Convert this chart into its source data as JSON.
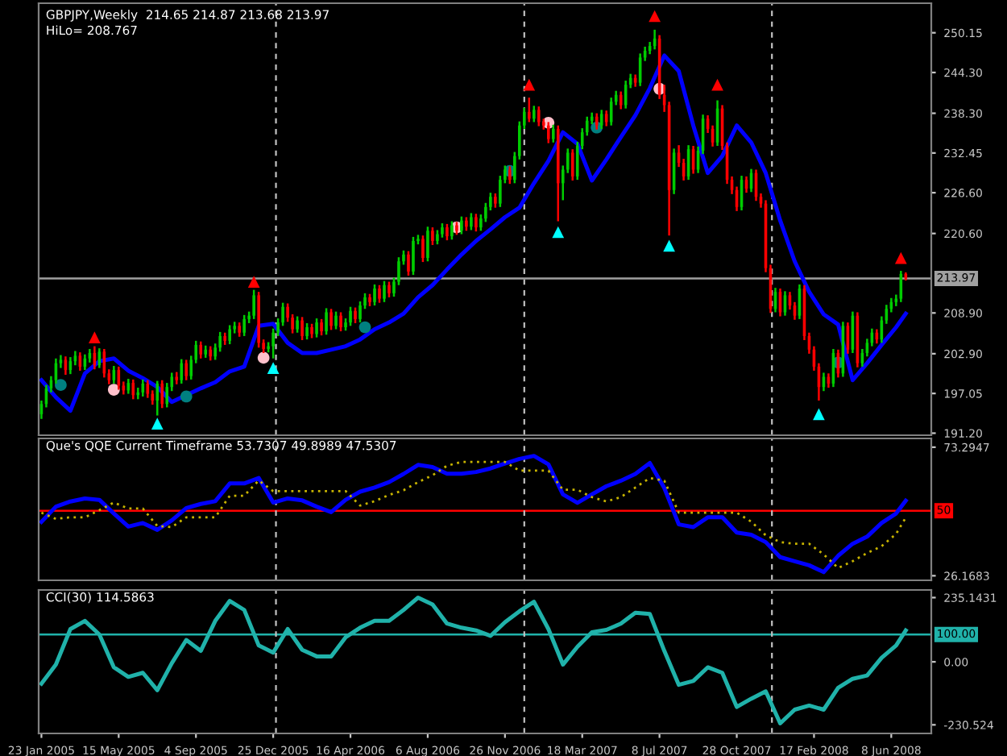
{
  "chart_data": [
    {
      "type": "candlestick",
      "title": "GBPJPY,Weekly  214.65 214.87 213.68 213.97",
      "subtitle": "HiLo= 208.767",
      "x": [
        "2005-01-23",
        "2005-01-30",
        "2005-02-06",
        "2005-02-13",
        "2005-02-20",
        "2005-02-27",
        "2005-03-06",
        "2005-03-13",
        "2005-03-20",
        "2005-03-27",
        "2005-04-03",
        "2005-04-10",
        "2005-04-17",
        "2005-04-24",
        "2005-05-01",
        "2005-05-08",
        "2005-05-15",
        "2005-05-22",
        "2005-05-29",
        "2005-06-05",
        "2005-06-12",
        "2005-06-19",
        "2005-06-26",
        "2005-07-03",
        "2005-07-10",
        "2005-07-17",
        "2005-07-24",
        "2005-07-31",
        "2005-08-07",
        "2005-08-14",
        "2005-08-21",
        "2005-08-28",
        "2005-09-04",
        "2005-09-11",
        "2005-09-18",
        "2005-09-25",
        "2005-10-02",
        "2005-10-09",
        "2005-10-16",
        "2005-10-23",
        "2005-10-30",
        "2005-11-06",
        "2005-11-13",
        "2005-11-20",
        "2005-11-27",
        "2005-12-04",
        "2005-12-11",
        "2005-12-18",
        "2005-12-25",
        "2006-01-01",
        "2006-01-08",
        "2006-01-15",
        "2006-01-22",
        "2006-01-29",
        "2006-02-05",
        "2006-02-12",
        "2006-02-19",
        "2006-02-26",
        "2006-03-05",
        "2006-03-12",
        "2006-03-19",
        "2006-03-26",
        "2006-04-02",
        "2006-04-09",
        "2006-04-16",
        "2006-04-23",
        "2006-04-30",
        "2006-05-07",
        "2006-05-14",
        "2006-05-21",
        "2006-05-28",
        "2006-06-04",
        "2006-06-11",
        "2006-06-18",
        "2006-06-25",
        "2006-07-02",
        "2006-07-09",
        "2006-07-16",
        "2006-07-23",
        "2006-07-30",
        "2006-08-06",
        "2006-08-13",
        "2006-08-20",
        "2006-08-27",
        "2006-09-03",
        "2006-09-10",
        "2006-09-17",
        "2006-09-24",
        "2006-10-01",
        "2006-10-08",
        "2006-10-15",
        "2006-10-22",
        "2006-10-29",
        "2006-11-05",
        "2006-11-12",
        "2006-11-19",
        "2006-11-26",
        "2006-12-03",
        "2006-12-10",
        "2006-12-17",
        "2006-12-24",
        "2006-12-31",
        "2007-01-07",
        "2007-01-14",
        "2007-01-21",
        "2007-01-28",
        "2007-02-04",
        "2007-02-11",
        "2007-02-18",
        "2007-02-25",
        "2007-03-04",
        "2007-03-11",
        "2007-03-18",
        "2007-03-25",
        "2007-04-01",
        "2007-04-08",
        "2007-04-15",
        "2007-04-22",
        "2007-04-29",
        "2007-05-06",
        "2007-05-13",
        "2007-05-20",
        "2007-05-27",
        "2007-06-03",
        "2007-06-10",
        "2007-06-17",
        "2007-06-24",
        "2007-07-01",
        "2007-07-08",
        "2007-07-15",
        "2007-07-22",
        "2007-07-29",
        "2007-08-05",
        "2007-08-12",
        "2007-08-19",
        "2007-08-26",
        "2007-09-02",
        "2007-09-09",
        "2007-09-16",
        "2007-09-23",
        "2007-09-30",
        "2007-10-07",
        "2007-10-14",
        "2007-10-21",
        "2007-10-28",
        "2007-11-04",
        "2007-11-11",
        "2007-11-18",
        "2007-11-25",
        "2007-12-02",
        "2007-12-09",
        "2007-12-16",
        "2007-12-23",
        "2007-12-30",
        "2008-01-06",
        "2008-01-13",
        "2008-01-20",
        "2008-01-27",
        "2008-02-03",
        "2008-02-10",
        "2008-02-17",
        "2008-02-24",
        "2008-03-02",
        "2008-03-09",
        "2008-03-16",
        "2008-03-23",
        "2008-03-30",
        "2008-04-06",
        "2008-04-13",
        "2008-04-20",
        "2008-04-27",
        "2008-05-04",
        "2008-05-11",
        "2008-05-18",
        "2008-05-25",
        "2008-06-01",
        "2008-06-08",
        "2008-06-15",
        "2008-06-22",
        "2008-06-29"
      ],
      "ohlc": [
        [
          194.0,
          196.0,
          193.3,
          195.5
        ],
        [
          195.5,
          198.3,
          195.0,
          197.8
        ],
        [
          197.8,
          199.6,
          197.2,
          199.0
        ],
        [
          199.0,
          202.2,
          198.5,
          201.5
        ],
        [
          201.5,
          202.7,
          200.8,
          202.0
        ],
        [
          202.0,
          202.5,
          199.8,
          200.5
        ],
        [
          200.5,
          202.4,
          199.9,
          201.8
        ],
        [
          201.8,
          203.3,
          201.2,
          202.6
        ],
        [
          202.6,
          203.1,
          200.4,
          201.0
        ],
        [
          201.0,
          202.8,
          200.5,
          202.2
        ],
        [
          202.2,
          203.6,
          201.6,
          203.0
        ],
        [
          203.0,
          204.0,
          200.6,
          201.2
        ],
        [
          201.2,
          203.7,
          200.8,
          203.2
        ],
        [
          203.2,
          203.6,
          199.4,
          200.0
        ],
        [
          200.0,
          200.6,
          198.4,
          199.0
        ],
        [
          199.0,
          201.1,
          198.5,
          200.5
        ],
        [
          200.5,
          201.0,
          197.6,
          198.2
        ],
        [
          198.2,
          198.8,
          196.9,
          197.5
        ],
        [
          197.5,
          199.2,
          197.0,
          198.6
        ],
        [
          198.6,
          199.1,
          196.2,
          196.8
        ],
        [
          196.8,
          197.9,
          196.2,
          197.2
        ],
        [
          197.2,
          199.1,
          196.6,
          198.5
        ],
        [
          198.5,
          199.0,
          196.4,
          197.0
        ],
        [
          197.0,
          197.5,
          195.4,
          196.0
        ],
        [
          196.0,
          198.9,
          193.8,
          198.5
        ],
        [
          198.5,
          199.0,
          194.9,
          195.5
        ],
        [
          195.5,
          198.6,
          195.0,
          198.0
        ],
        [
          198.0,
          200.1,
          197.4,
          199.5
        ],
        [
          199.5,
          200.2,
          198.4,
          199.0
        ],
        [
          199.0,
          202.1,
          198.5,
          201.5
        ],
        [
          201.5,
          202.0,
          199.0,
          199.6
        ],
        [
          199.6,
          202.6,
          199.1,
          202.0
        ],
        [
          202.0,
          204.8,
          201.5,
          204.2
        ],
        [
          204.2,
          204.7,
          202.2,
          202.8
        ],
        [
          202.8,
          204.1,
          202.3,
          203.5
        ],
        [
          203.5,
          204.0,
          201.9,
          202.5
        ],
        [
          202.5,
          204.4,
          202.0,
          203.8
        ],
        [
          203.8,
          206.1,
          203.2,
          205.5
        ],
        [
          205.5,
          206.0,
          204.2,
          204.8
        ],
        [
          204.8,
          207.1,
          204.3,
          206.5
        ],
        [
          206.5,
          207.6,
          205.9,
          207.0
        ],
        [
          207.0,
          207.5,
          205.4,
          206.0
        ],
        [
          206.0,
          208.6,
          205.5,
          208.0
        ],
        [
          208.0,
          209.1,
          207.4,
          208.5
        ],
        [
          208.5,
          212.3,
          208.0,
          211.5
        ],
        [
          211.5,
          212.0,
          203.8,
          204.5
        ],
        [
          204.5,
          205.0,
          203.0,
          203.6
        ],
        [
          203.6,
          204.6,
          203.1,
          204.0
        ],
        [
          204.0,
          206.6,
          202.2,
          206.0
        ],
        [
          206.0,
          208.1,
          205.5,
          207.5
        ],
        [
          207.5,
          210.4,
          207.0,
          209.8
        ],
        [
          209.8,
          210.3,
          207.6,
          208.2
        ],
        [
          208.2,
          208.7,
          205.9,
          206.5
        ],
        [
          206.5,
          208.4,
          206.0,
          207.8
        ],
        [
          207.8,
          208.3,
          204.9,
          205.5
        ],
        [
          205.5,
          207.4,
          205.0,
          206.8
        ],
        [
          206.8,
          207.3,
          205.2,
          205.8
        ],
        [
          205.8,
          208.1,
          205.3,
          207.5
        ],
        [
          207.5,
          208.0,
          205.6,
          206.2
        ],
        [
          206.2,
          209.6,
          205.7,
          209.0
        ],
        [
          209.0,
          209.5,
          206.4,
          207.0
        ],
        [
          207.0,
          209.1,
          206.5,
          208.5
        ],
        [
          208.5,
          209.0,
          206.2,
          206.8
        ],
        [
          206.8,
          208.1,
          206.3,
          207.5
        ],
        [
          207.5,
          209.8,
          207.0,
          209.2
        ],
        [
          209.2,
          209.7,
          207.4,
          208.0
        ],
        [
          208.0,
          210.6,
          207.5,
          210.0
        ],
        [
          210.0,
          211.8,
          209.5,
          211.2
        ],
        [
          211.2,
          211.7,
          209.9,
          210.5
        ],
        [
          210.5,
          213.1,
          210.0,
          212.5
        ],
        [
          212.5,
          213.0,
          210.4,
          211.0
        ],
        [
          211.0,
          213.6,
          210.5,
          213.0
        ],
        [
          213.0,
          213.5,
          211.2,
          211.8
        ],
        [
          211.8,
          214.1,
          211.3,
          213.5
        ],
        [
          213.5,
          217.1,
          213.0,
          216.5
        ],
        [
          216.5,
          218.1,
          216.0,
          217.5
        ],
        [
          217.5,
          218.0,
          214.4,
          215.0
        ],
        [
          215.0,
          220.1,
          214.5,
          219.5
        ],
        [
          219.5,
          220.4,
          219.0,
          219.8
        ],
        [
          219.8,
          220.3,
          216.4,
          217.0
        ],
        [
          217.0,
          221.6,
          216.5,
          221.0
        ],
        [
          221.0,
          221.5,
          218.9,
          219.5
        ],
        [
          219.5,
          221.1,
          219.0,
          220.5
        ],
        [
          220.5,
          222.1,
          220.0,
          221.5
        ],
        [
          221.5,
          222.0,
          219.6,
          220.2
        ],
        [
          220.2,
          222.4,
          219.7,
          221.8
        ],
        [
          221.8,
          222.3,
          220.4,
          221.0
        ],
        [
          221.0,
          223.1,
          220.5,
          222.5
        ],
        [
          222.5,
          223.0,
          221.0,
          221.6
        ],
        [
          221.6,
          223.6,
          221.1,
          223.0
        ],
        [
          223.0,
          223.5,
          220.9,
          221.5
        ],
        [
          221.5,
          223.4,
          221.0,
          222.8
        ],
        [
          222.8,
          225.1,
          222.3,
          224.5
        ],
        [
          224.5,
          226.6,
          224.0,
          226.0
        ],
        [
          226.0,
          226.5,
          224.4,
          225.0
        ],
        [
          225.0,
          229.1,
          224.5,
          228.5
        ],
        [
          228.5,
          230.6,
          228.0,
          230.0
        ],
        [
          230.0,
          230.5,
          227.9,
          228.5
        ],
        [
          228.5,
          232.6,
          228.0,
          232.0
        ],
        [
          232.0,
          237.1,
          231.5,
          236.5
        ],
        [
          236.5,
          239.1,
          236.0,
          238.5
        ],
        [
          238.5,
          240.6,
          237.0,
          237.5
        ],
        [
          237.5,
          239.4,
          237.0,
          238.8
        ],
        [
          238.8,
          239.3,
          236.4,
          237.0
        ],
        [
          237.0,
          237.5,
          235.9,
          236.5
        ],
        [
          236.5,
          237.0,
          233.9,
          234.5
        ],
        [
          234.5,
          236.6,
          234.0,
          236.0
        ],
        [
          236.0,
          236.5,
          222.4,
          228.0
        ],
        [
          228.0,
          230.6,
          225.5,
          230.0
        ],
        [
          230.0,
          233.1,
          229.5,
          232.5
        ],
        [
          232.5,
          233.0,
          228.4,
          229.0
        ],
        [
          229.0,
          234.1,
          228.5,
          233.5
        ],
        [
          233.5,
          236.1,
          233.0,
          235.5
        ],
        [
          235.5,
          237.8,
          235.0,
          237.2
        ],
        [
          237.2,
          238.4,
          236.7,
          237.8
        ],
        [
          237.8,
          238.3,
          235.9,
          236.5
        ],
        [
          236.5,
          238.8,
          236.0,
          238.2
        ],
        [
          238.2,
          238.7,
          236.4,
          237.0
        ],
        [
          237.0,
          240.6,
          236.5,
          240.0
        ],
        [
          240.0,
          241.6,
          239.5,
          241.0
        ],
        [
          241.0,
          241.5,
          238.9,
          239.5
        ],
        [
          239.5,
          243.1,
          239.0,
          242.5
        ],
        [
          242.5,
          244.1,
          242.0,
          243.5
        ],
        [
          243.5,
          244.0,
          242.2,
          242.8
        ],
        [
          242.8,
          247.1,
          242.3,
          246.5
        ],
        [
          246.5,
          248.1,
          246.0,
          247.5
        ],
        [
          247.5,
          248.8,
          247.0,
          248.2
        ],
        [
          248.2,
          250.6,
          247.7,
          249.3
        ],
        [
          249.3,
          249.8,
          240.4,
          241.0
        ],
        [
          241.0,
          242.5,
          238.5,
          239.5
        ],
        [
          239.5,
          240.0,
          220.3,
          227.0
        ],
        [
          227.0,
          233.1,
          226.4,
          232.5
        ],
        [
          232.5,
          233.6,
          230.4,
          231.0
        ],
        [
          231.0,
          231.6,
          228.4,
          229.0
        ],
        [
          229.0,
          233.6,
          228.5,
          233.0
        ],
        [
          233.0,
          233.5,
          229.4,
          230.0
        ],
        [
          230.0,
          233.4,
          229.5,
          232.8
        ],
        [
          232.8,
          238.1,
          232.3,
          237.5
        ],
        [
          237.5,
          238.0,
          235.4,
          236.0
        ],
        [
          236.0,
          236.5,
          233.4,
          234.0
        ],
        [
          234.0,
          240.2,
          233.5,
          239.0
        ],
        [
          239.0,
          239.5,
          232.9,
          233.5
        ],
        [
          233.5,
          234.0,
          227.9,
          228.5
        ],
        [
          228.5,
          229.0,
          226.4,
          227.0
        ],
        [
          227.0,
          227.5,
          223.9,
          224.5
        ],
        [
          224.5,
          229.1,
          224.0,
          228.5
        ],
        [
          228.5,
          229.0,
          226.6,
          227.2
        ],
        [
          227.2,
          230.1,
          226.7,
          229.5
        ],
        [
          229.5,
          230.0,
          225.4,
          226.0
        ],
        [
          226.0,
          226.5,
          224.4,
          225.0
        ],
        [
          225.0,
          225.5,
          214.9,
          215.5
        ],
        [
          215.5,
          216.0,
          208.9,
          209.5
        ],
        [
          209.5,
          212.6,
          209.0,
          212.0
        ],
        [
          212.0,
          212.5,
          208.4,
          209.0
        ],
        [
          209.0,
          212.1,
          208.5,
          211.5
        ],
        [
          211.5,
          212.0,
          209.4,
          210.0
        ],
        [
          210.0,
          210.5,
          207.9,
          208.5
        ],
        [
          208.5,
          213.1,
          208.0,
          212.5
        ],
        [
          212.5,
          213.0,
          204.9,
          205.5
        ],
        [
          205.5,
          206.0,
          202.9,
          203.5
        ],
        [
          203.5,
          204.0,
          200.4,
          201.0
        ],
        [
          201.0,
          201.5,
          196.0,
          198.0
        ],
        [
          198.0,
          200.1,
          197.4,
          199.5
        ],
        [
          199.5,
          200.0,
          197.9,
          198.5
        ],
        [
          198.5,
          203.6,
          198.0,
          203.0
        ],
        [
          203.0,
          203.5,
          199.4,
          200.0
        ],
        [
          200.0,
          207.6,
          199.5,
          207.0
        ],
        [
          207.0,
          207.5,
          202.9,
          203.5
        ],
        [
          203.5,
          209.1,
          203.0,
          208.5
        ],
        [
          208.5,
          209.0,
          200.9,
          201.5
        ],
        [
          201.5,
          203.6,
          201.0,
          203.0
        ],
        [
          203.0,
          205.1,
          202.5,
          204.5
        ],
        [
          204.5,
          206.6,
          204.0,
          206.0
        ],
        [
          206.0,
          206.5,
          204.4,
          205.0
        ],
        [
          205.0,
          208.4,
          204.5,
          207.8
        ],
        [
          207.8,
          210.1,
          207.3,
          209.5
        ],
        [
          209.5,
          211.1,
          209.0,
          210.5
        ],
        [
          210.5,
          211.6,
          209.9,
          211.0
        ],
        [
          211.0,
          215.1,
          210.5,
          214.65
        ],
        [
          214.65,
          214.87,
          213.68,
          213.97
        ]
      ],
      "colors": [
        "#00cc00",
        "#00cc00",
        "#00cc00",
        "#00cc00",
        "#00cc00",
        "#ff0000",
        "#00cc00",
        "#00cc00",
        "#ff0000",
        "#00cc00",
        "#00cc00",
        "#ff0000",
        "#00cc00",
        "#ff0000",
        "#ff0000",
        "#00cc00",
        "#ff0000",
        "#ff0000",
        "#00cc00",
        "#ff0000",
        "#00cc00",
        "#00cc00",
        "#ff0000",
        "#ff0000",
        "#00cc00",
        "#ff0000",
        "#00cc00",
        "#00cc00",
        "#ff0000",
        "#00cc00",
        "#ff0000",
        "#00cc00",
        "#00cc00",
        "#ff0000",
        "#00cc00",
        "#ff0000",
        "#00cc00",
        "#00cc00",
        "#ff0000",
        "#00cc00",
        "#00cc00",
        "#ff0000",
        "#00cc00",
        "#00cc00",
        "#00cc00",
        "#ff0000",
        "#ff0000",
        "#00cc00",
        "#00cc00",
        "#00cc00",
        "#00cc00",
        "#ff0000",
        "#ff0000",
        "#00cc00",
        "#ff0000",
        "#00cc00",
        "#ff0000",
        "#00cc00",
        "#ff0000",
        "#00cc00",
        "#ff0000",
        "#00cc00",
        "#ff0000",
        "#00cc00",
        "#00cc00",
        "#ff0000",
        "#00cc00",
        "#00cc00",
        "#ff0000",
        "#00cc00",
        "#ff0000",
        "#00cc00",
        "#ff0000",
        "#00cc00",
        "#00cc00",
        "#00cc00",
        "#ff0000",
        "#00cc00",
        "#00cc00",
        "#ff0000",
        "#00cc00",
        "#ff0000",
        "#00cc00",
        "#00cc00",
        "#ff0000",
        "#00cc00",
        "#ff0000",
        "#00cc00",
        "#ff0000",
        "#00cc00",
        "#ff0000",
        "#00cc00",
        "#00cc00",
        "#00cc00",
        "#ff0000",
        "#00cc00",
        "#00cc00",
        "#ff0000",
        "#00cc00",
        "#00cc00",
        "#00cc00",
        "#ff0000",
        "#00cc00",
        "#ff0000",
        "#ff0000",
        "#ff0000",
        "#00cc00",
        "#ff0000",
        "#00cc00",
        "#00cc00",
        "#ff0000",
        "#00cc00",
        "#00cc00",
        "#00cc00",
        "#00cc00",
        "#ff0000",
        "#00cc00",
        "#ff0000",
        "#00cc00",
        "#00cc00",
        "#ff0000",
        "#00cc00",
        "#00cc00",
        "#ff0000",
        "#00cc00",
        "#00cc00",
        "#00cc00",
        "#00cc00",
        "#ff0000",
        "#ff0000",
        "#ff0000",
        "#00cc00",
        "#ff0000",
        "#ff0000",
        "#00cc00",
        "#ff0000",
        "#00cc00",
        "#00cc00",
        "#ff0000",
        "#ff0000",
        "#00cc00",
        "#ff0000",
        "#ff0000",
        "#ff0000",
        "#ff0000",
        "#00cc00",
        "#ff0000",
        "#00cc00",
        "#ff0000",
        "#ff0000",
        "#ff0000",
        "#ff0000",
        "#00cc00",
        "#ff0000",
        "#00cc00",
        "#ff0000",
        "#ff0000",
        "#00cc00",
        "#ff0000",
        "#ff0000",
        "#ff0000",
        "#ff0000",
        "#00cc00",
        "#ff0000",
        "#00cc00",
        "#ff0000",
        "#00cc00",
        "#ff0000",
        "#00cc00",
        "#ff0000",
        "#00cc00",
        "#00cc00",
        "#00cc00",
        "#ff0000",
        "#00cc00",
        "#00cc00",
        "#00cc00",
        "#00cc00",
        "#00cc00",
        "#ff0000"
      ],
      "series": [
        {
          "type": "line",
          "color": "#0000ff",
          "x": [
            "2005-01-23",
            "2005-02-13",
            "2005-03-06",
            "2005-03-27",
            "2005-04-17",
            "2005-05-08",
            "2005-05-29",
            "2005-06-19",
            "2005-07-10",
            "2005-07-31",
            "2005-08-21",
            "2005-09-11",
            "2005-10-02",
            "2005-10-23",
            "2005-11-13",
            "2005-12-04",
            "2005-12-25",
            "2006-01-15",
            "2006-02-05",
            "2006-02-26",
            "2006-03-19",
            "2006-04-09",
            "2006-04-30",
            "2006-05-21",
            "2006-06-11",
            "2006-07-02",
            "2006-07-23",
            "2006-08-13",
            "2006-09-03",
            "2006-09-24",
            "2006-10-15",
            "2006-11-05",
            "2006-11-26",
            "2006-12-17",
            "2007-01-07",
            "2007-01-28",
            "2007-02-18",
            "2007-03-11",
            "2007-04-01",
            "2007-04-22",
            "2007-05-13",
            "2007-06-03",
            "2007-06-24",
            "2007-07-15",
            "2007-08-05",
            "2007-08-26",
            "2007-09-16",
            "2007-10-07",
            "2007-10-28",
            "2007-11-18",
            "2007-12-09",
            "2007-12-30",
            "2008-01-20",
            "2008-02-10",
            "2008-03-02",
            "2008-03-23",
            "2008-04-13",
            "2008-05-04",
            "2008-05-25",
            "2008-06-15",
            "2008-06-29"
          ],
          "values": [
            199.0,
            196.5,
            194.5,
            200.0,
            201.8,
            202.2,
            200.4,
            199.3,
            198.0,
            195.8,
            196.8,
            197.8,
            198.7,
            200.3,
            201.0,
            207.0,
            207.3,
            204.5,
            203.0,
            203.0,
            203.5,
            204.0,
            205.0,
            206.5,
            207.5,
            208.8,
            211.2,
            213.0,
            215.3,
            217.5,
            219.5,
            221.2,
            223.0,
            224.4,
            228.0,
            231.3,
            235.5,
            233.8,
            228.4,
            231.5,
            234.8,
            238.0,
            242.0,
            246.8,
            244.5,
            236.5,
            229.5,
            232.0,
            236.5,
            234.0,
            229.5,
            222.5,
            216.5,
            212.0,
            208.7,
            207.2,
            199.0,
            201.5,
            204.2,
            206.8,
            208.8
          ]
        },
        {
          "type": "scatter",
          "marker": "triangle",
          "color": "#ff0000",
          "x": [
            "2005-04-10",
            "2005-11-27",
            "2006-12-31",
            "2007-07-01",
            "2007-09-30",
            "2008-06-22"
          ],
          "values": [
            205.3,
            213.5,
            242.5,
            252.6,
            242.5,
            217.0
          ]
        },
        {
          "type": "scatter",
          "marker": "triangle",
          "color": "#00ffff",
          "x": [
            "2005-07-10",
            "2005-12-25",
            "2007-02-11",
            "2007-07-22",
            "2008-02-24"
          ],
          "values": [
            192.6,
            200.8,
            220.8,
            218.8,
            194.0
          ]
        },
        {
          "type": "scatter",
          "marker": "circle",
          "color": "#ffc0cb",
          "x": [
            "2005-05-08",
            "2005-12-11",
            "2006-09-17",
            "2007-01-28",
            "2007-07-08"
          ],
          "values": [
            197.6,
            202.3,
            221.5,
            236.9,
            241.9
          ]
        },
        {
          "type": "scatter",
          "marker": "circle",
          "color": "#008080",
          "x": [
            "2005-02-20",
            "2005-08-21",
            "2006-05-07",
            "2006-12-03",
            "2007-04-08",
            "2008-03-23"
          ],
          "values": [
            198.3,
            196.6,
            206.8,
            229.8,
            236.2,
            201.6
          ]
        }
      ],
      "xlim": [
        "2005-01-19",
        "2008-08-05"
      ],
      "ylim": [
        190.9,
        254.5
      ],
      "yticks": [
        250.15,
        {
          "value": 244.3,
          "label": "244.30"
        },
        {
          "value": 238.3,
          "label": "238.30"
        },
        232.45,
        {
          "value": 226.6,
          "label": "226.60"
        },
        {
          "value": 220.6,
          "label": "220.60"
        },
        {
          "value": 208.9,
          "label": "208.90"
        },
        {
          "value": 202.9,
          "label": "202.90"
        },
        197.05,
        {
          "value": 191.2,
          "label": "191.20"
        }
      ],
      "tick_labels": "y",
      "ref_lines": [
        {
          "axis": "y",
          "value": 213.97,
          "label": "213.97",
          "color": "#a0a0a0"
        },
        {
          "axis": "x",
          "value": "2005-12-29",
          "color": "#c0c0c0",
          "line_style": "dashed"
        },
        {
          "axis": "x",
          "value": "2006-12-24",
          "color": "#c0c0c0",
          "line_style": "dashed"
        },
        {
          "axis": "x",
          "value": "2007-12-18",
          "color": "#c0c0c0",
          "line_style": "dashed"
        }
      ]
    },
    {
      "type": "line",
      "title": "Que's QQE Current Timeframe 53.7307 49.8989 47.5307",
      "x": [
        "2005-01-23",
        "2005-02-13",
        "2005-03-06",
        "2005-03-27",
        "2005-04-17",
        "2005-05-08",
        "2005-05-29",
        "2005-06-19",
        "2005-07-10",
        "2005-07-31",
        "2005-08-21",
        "2005-09-11",
        "2005-10-02",
        "2005-10-23",
        "2005-11-13",
        "2005-12-04",
        "2005-12-25",
        "2006-01-15",
        "2006-02-05",
        "2006-02-26",
        "2006-03-19",
        "2006-04-09",
        "2006-04-30",
        "2006-05-21",
        "2006-06-11",
        "2006-07-02",
        "2006-07-23",
        "2006-08-13",
        "2006-09-03",
        "2006-09-24",
        "2006-10-15",
        "2006-11-05",
        "2006-11-26",
        "2006-12-17",
        "2007-01-07",
        "2007-01-28",
        "2007-02-18",
        "2007-03-11",
        "2007-04-01",
        "2007-04-22",
        "2007-05-13",
        "2007-06-03",
        "2007-06-24",
        "2007-07-15",
        "2007-08-05",
        "2007-08-26",
        "2007-09-16",
        "2007-10-07",
        "2007-10-28",
        "2007-11-18",
        "2007-12-09",
        "2007-12-30",
        "2008-01-20",
        "2008-02-10",
        "2008-03-02",
        "2008-03-23",
        "2008-04-13",
        "2008-05-04",
        "2008-05-25",
        "2008-06-15",
        "2008-06-29"
      ],
      "series": [
        {
          "color": "#0000ff",
          "values": [
            45.9,
            51.5,
            53.4,
            54.5,
            54.0,
            49.0,
            44.2,
            45.5,
            43.0,
            46.5,
            51.0,
            52.5,
            53.5,
            60.0,
            60.0,
            62.0,
            53.0,
            54.5,
            53.8,
            51.5,
            49.5,
            54.0,
            57.0,
            58.5,
            60.5,
            63.5,
            66.8,
            66.0,
            63.6,
            63.6,
            64.2,
            65.5,
            67.3,
            69.0,
            70.1,
            67.0,
            56.0,
            52.9,
            56.0,
            59.0,
            61.0,
            63.5,
            67.5,
            58.3,
            45.0,
            44.0,
            47.6,
            47.6,
            42.0,
            41.2,
            38.5,
            33.0,
            31.5,
            30.0,
            27.5,
            33.5,
            37.9,
            40.5,
            45.5,
            49.0,
            53.7
          ]
        },
        {
          "color": "#c8b400",
          "line_style": "dotted",
          "values": [
            49.3,
            47.0,
            47.6,
            47.6,
            50.2,
            53.0,
            50.8,
            50.8,
            44.4,
            44.0,
            47.6,
            47.6,
            47.6,
            55.5,
            55.5,
            61.1,
            57.2,
            57.2,
            57.2,
            57.2,
            57.2,
            57.2,
            51.9,
            53.5,
            55.8,
            57.5,
            60.5,
            63.0,
            66.5,
            67.9,
            67.9,
            67.9,
            67.9,
            64.7,
            64.7,
            64.7,
            57.7,
            57.7,
            55.0,
            53.4,
            55.0,
            58.5,
            62.0,
            61.0,
            49.3,
            49.3,
            49.3,
            49.3,
            49.3,
            46.0,
            41.0,
            38.5,
            37.9,
            37.9,
            34.0,
            29.0,
            31.5,
            34.5,
            37.0,
            41.5,
            47.5
          ]
        }
      ],
      "xlim": [
        "2005-01-19",
        "2008-08-05"
      ],
      "ylim": [
        24.5,
        76.5
      ],
      "yticks": [
        73.2947,
        26.1683
      ],
      "tick_labels": "y",
      "ref_lines": [
        {
          "axis": "y",
          "value": 50,
          "label": "50",
          "color": "#ff0000"
        },
        {
          "axis": "x",
          "value": "2005-12-29",
          "color": "#c0c0c0",
          "line_style": "dashed"
        },
        {
          "axis": "x",
          "value": "2006-12-24",
          "color": "#c0c0c0",
          "line_style": "dashed"
        },
        {
          "axis": "x",
          "value": "2007-12-18",
          "color": "#c0c0c0",
          "line_style": "dashed"
        }
      ]
    },
    {
      "type": "line",
      "title": "CCI(30) 114.5863",
      "x": [
        "2005-01-23",
        "2005-02-13",
        "2005-03-06",
        "2005-03-27",
        "2005-04-17",
        "2005-05-08",
        "2005-05-29",
        "2005-06-19",
        "2005-07-10",
        "2005-07-31",
        "2005-08-21",
        "2005-09-11",
        "2005-10-02",
        "2005-10-23",
        "2005-11-13",
        "2005-12-04",
        "2005-12-25",
        "2006-01-15",
        "2006-02-05",
        "2006-02-26",
        "2006-03-19",
        "2006-04-09",
        "2006-04-30",
        "2006-05-21",
        "2006-06-11",
        "2006-07-02",
        "2006-07-23",
        "2006-08-13",
        "2006-09-03",
        "2006-09-24",
        "2006-10-15",
        "2006-11-05",
        "2006-11-26",
        "2006-12-17",
        "2007-01-07",
        "2007-01-28",
        "2007-02-18",
        "2007-03-11",
        "2007-04-01",
        "2007-04-22",
        "2007-05-13",
        "2007-06-03",
        "2007-06-24",
        "2007-07-15",
        "2007-08-05",
        "2007-08-26",
        "2007-09-16",
        "2007-10-07",
        "2007-10-28",
        "2007-11-18",
        "2007-12-09",
        "2007-12-30",
        "2008-01-20",
        "2008-02-10",
        "2008-03-02",
        "2008-03-23",
        "2008-04-13",
        "2008-05-04",
        "2008-05-25",
        "2008-06-15",
        "2008-06-29"
      ],
      "series": [
        {
          "color": "#20b2aa",
          "values": [
            -80,
            -10,
            120,
            150,
            100,
            -20,
            -55,
            -40,
            -104,
            -5,
            80,
            40,
            150,
            223,
            190,
            60,
            34,
            120,
            44,
            20,
            20,
            90,
            125,
            150,
            150,
            190,
            235,
            210,
            140,
            125,
            115,
            95,
            145,
            185,
            220,
            120,
            -10,
            55,
            108,
            117,
            140,
            180,
            175,
            40,
            -84,
            -70,
            -20,
            -40,
            -165,
            -135,
            -108,
            -225,
            -175,
            -160,
            -175,
            -95,
            -62,
            -50,
            15,
            60,
            115
          ]
        }
      ],
      "xlim": [
        "2005-01-19",
        "2008-08-05"
      ],
      "ylim": [
        -262,
        263
      ],
      "yticks": [
        235.1431,
        {
          "value": 0,
          "label": "0.00"
        },
        -230.524
      ],
      "xticks": [
        {
          "value": "2005-01-23",
          "label": "23 Jan 2005"
        },
        {
          "value": "2005-05-15",
          "label": "15 May 2005"
        },
        {
          "value": "2005-09-04",
          "label": "4 Sep 2005"
        },
        {
          "value": "2005-12-25",
          "label": "25 Dec 2005"
        },
        {
          "value": "2006-04-16",
          "label": "16 Apr 2006"
        },
        {
          "value": "2006-08-06",
          "label": "6 Aug 2006"
        },
        {
          "value": "2006-11-26",
          "label": "26 Nov 2006"
        },
        {
          "value": "2007-03-18",
          "label": "18 Mar 2007"
        },
        {
          "value": "2007-07-08",
          "label": "8 Jul 2007"
        },
        {
          "value": "2007-10-28",
          "label": "28 Oct 2007"
        },
        {
          "value": "2008-02-17",
          "label": "17 Feb 2008"
        },
        {
          "value": "2008-06-08",
          "label": "8 Jun 2008"
        }
      ],
      "ref_lines": [
        {
          "axis": "y",
          "value": 100,
          "label": "100.00",
          "color": "#20b2aa"
        },
        {
          "axis": "x",
          "value": "2005-12-29",
          "color": "#c0c0c0",
          "line_style": "dashed"
        },
        {
          "axis": "x",
          "value": "2006-12-24",
          "color": "#c0c0c0",
          "line_style": "dashed"
        },
        {
          "axis": "x",
          "value": "2007-12-18",
          "color": "#c0c0c0",
          "line_style": "dashed"
        }
      ]
    }
  ]
}
